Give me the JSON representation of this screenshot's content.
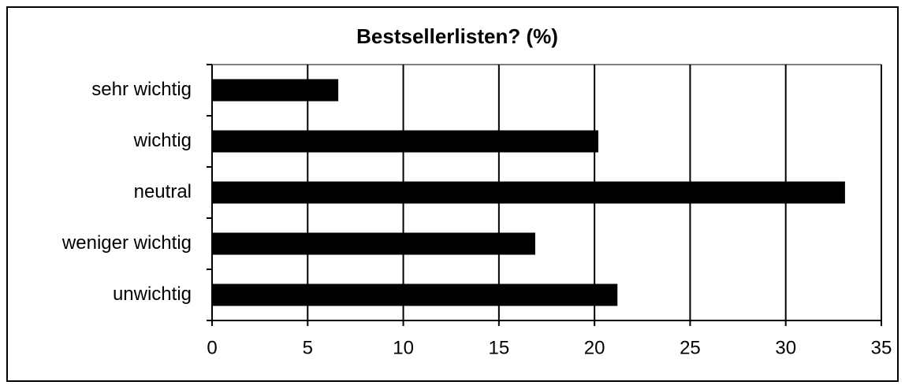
{
  "chart_data": {
    "type": "hbar",
    "title": "Bestsellerlisten? (%)",
    "categories": [
      "sehr wichtig",
      "wichtig",
      "neutral",
      "weniger wichtig",
      "unwichtig"
    ],
    "values": [
      6.6,
      20.2,
      33.1,
      16.9,
      21.2
    ],
    "color": "#000000",
    "xlim": [
      0,
      35
    ],
    "xticks": [
      0,
      5,
      10,
      15,
      20,
      25,
      30,
      35
    ],
    "grid": true
  }
}
